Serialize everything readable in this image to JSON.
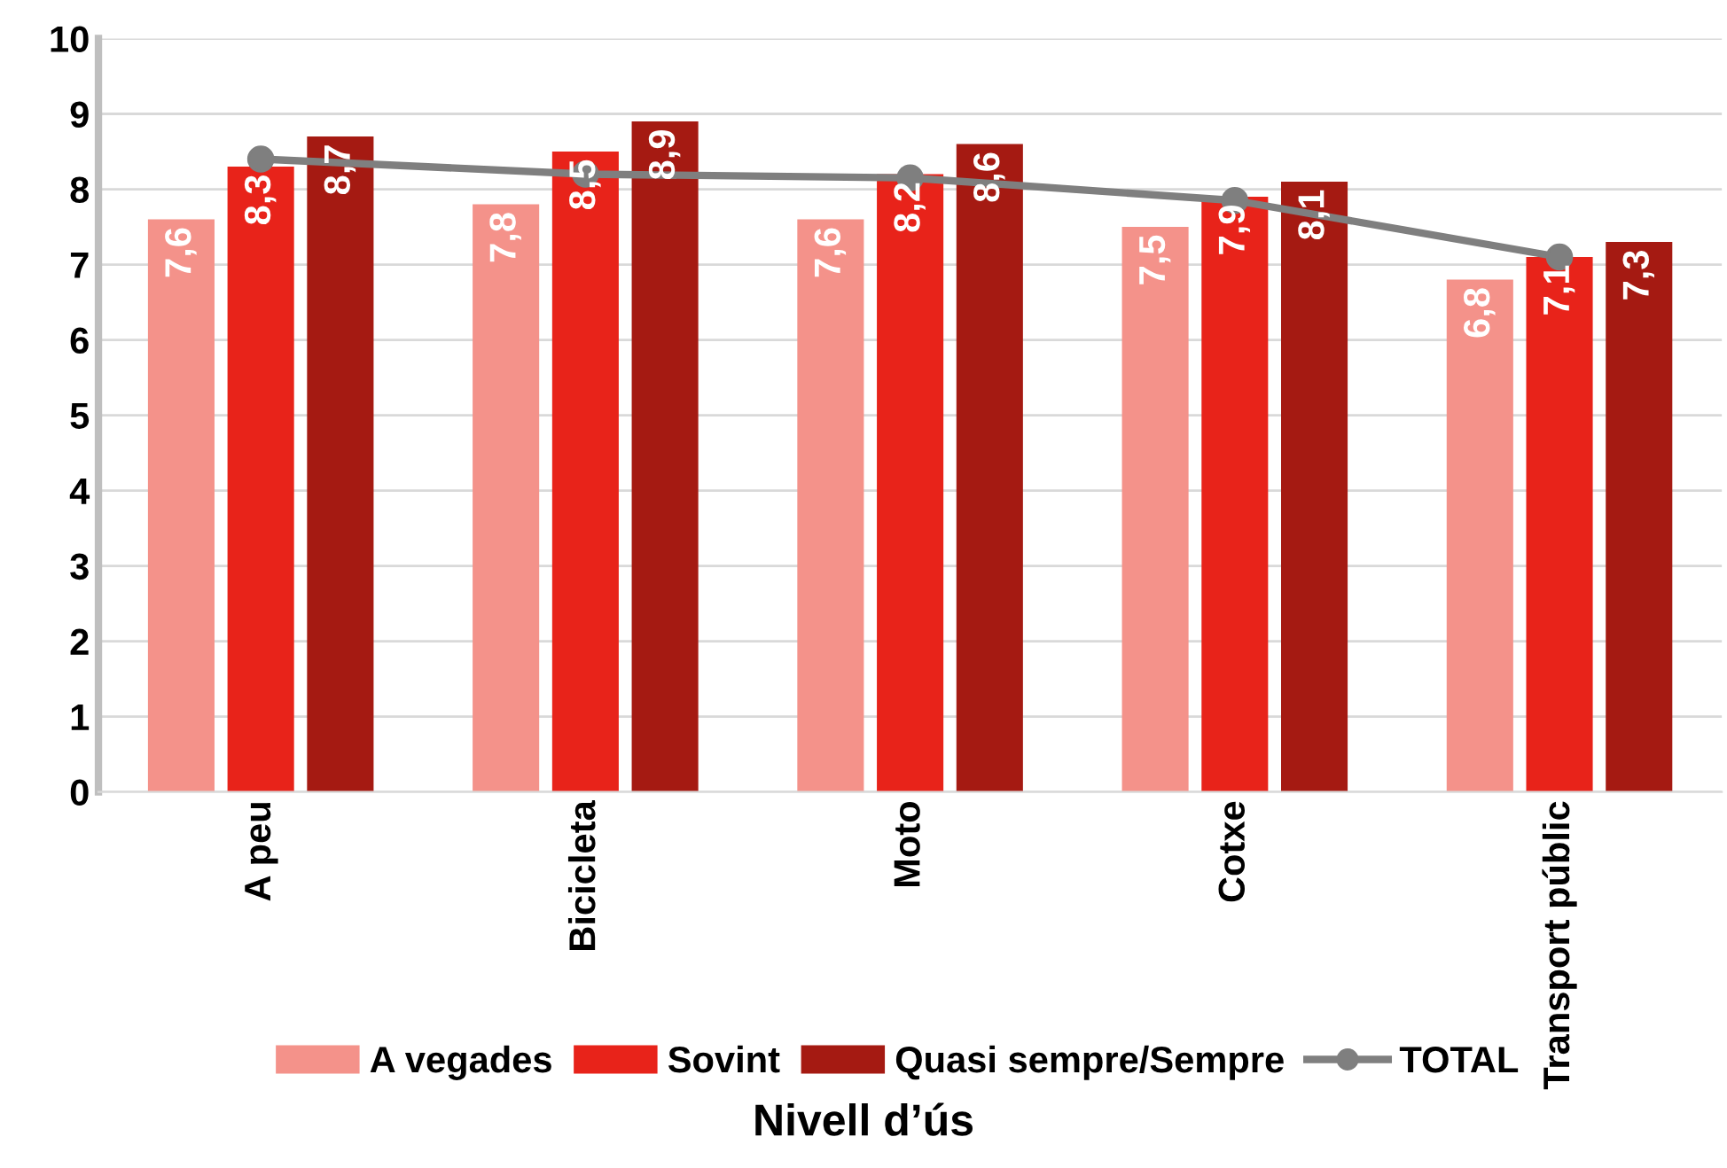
{
  "chart_data": {
    "type": "bar",
    "xlabel": "Nivell d’ús",
    "categories": [
      "A peu",
      "Bicicleta",
      "Moto",
      "Cotxe",
      "Transport públic"
    ],
    "series": [
      {
        "name": "A vegades",
        "color": "#f4928a",
        "values": [
          7.6,
          7.8,
          7.6,
          7.5,
          6.8
        ],
        "value_labels": [
          "7,6",
          "7,8",
          "7,6",
          "7,5",
          "6,8"
        ]
      },
      {
        "name": "Sovint",
        "color": "#e8231a",
        "values": [
          8.3,
          8.5,
          8.2,
          7.9,
          7.1
        ],
        "value_labels": [
          "8,3",
          "8,5",
          "8,2",
          "7,9",
          "7,1"
        ]
      },
      {
        "name": "Quasi sempre/Sempre",
        "color": "#a51a12",
        "values": [
          8.7,
          8.9,
          8.6,
          8.1,
          7.3
        ],
        "value_labels": [
          "8,7",
          "8,9",
          "8,6",
          "8,1",
          "7,3"
        ]
      },
      {
        "name": "TOTAL",
        "type": "line",
        "color": "#7f7f7f",
        "marker": "circle",
        "values": [
          8.4,
          8.2,
          8.15,
          7.85,
          7.1
        ]
      }
    ],
    "ylim": [
      0,
      10
    ],
    "yticks": [
      0,
      1,
      2,
      3,
      4,
      5,
      6,
      7,
      8,
      9,
      10
    ],
    "grid": "y",
    "legend": "bottom"
  }
}
